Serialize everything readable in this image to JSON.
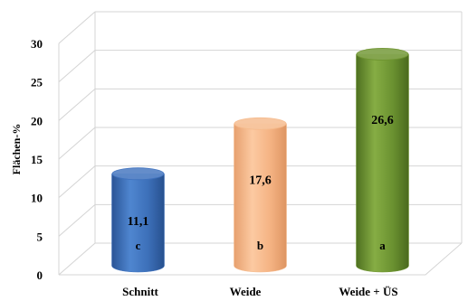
{
  "chart_data": {
    "type": "bar",
    "title": "",
    "xlabel": "",
    "ylabel": "Flächen-%",
    "ylim": [
      0,
      30
    ],
    "yticks": [
      0,
      5,
      10,
      15,
      20,
      25,
      30
    ],
    "grid": true,
    "style": "3d-cylinder",
    "categories": [
      "Schnitt",
      "Weide",
      "Weide + ÜS"
    ],
    "values": [
      11.1,
      17.6,
      26.6
    ],
    "value_labels": [
      "11,1",
      "17,6",
      "26,6"
    ],
    "significance_letters": [
      "c",
      "b",
      "a"
    ],
    "colors": [
      "#3f72be",
      "#f6ba8c",
      "#6f9530"
    ]
  }
}
